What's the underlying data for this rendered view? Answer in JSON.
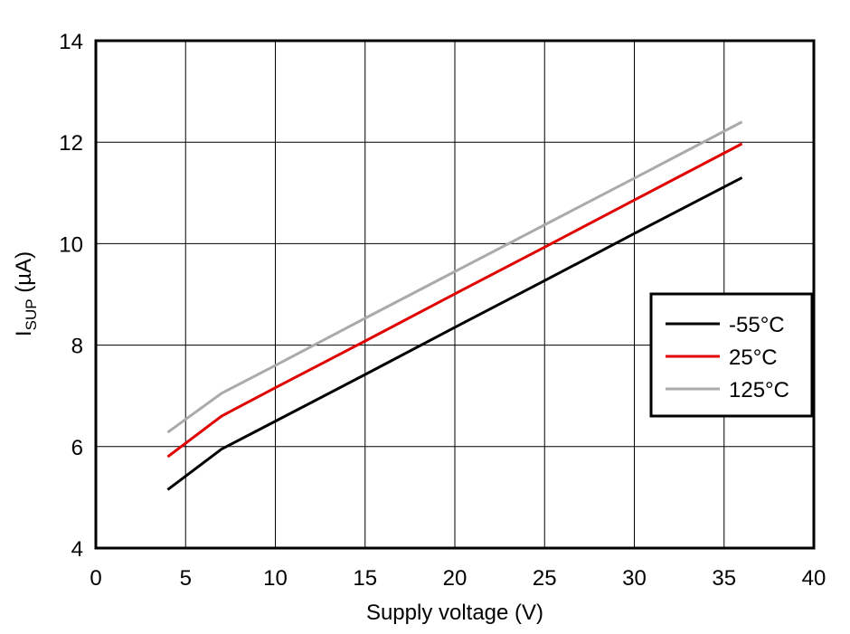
{
  "chart_data": {
    "type": "line",
    "x_label": "Supply voltage (V)",
    "y_label": {
      "main": "I",
      "sub": "SUP",
      "rest": " (µA)"
    },
    "x": [
      4,
      7,
      10,
      15,
      20,
      25,
      30,
      36
    ],
    "series": [
      {
        "name": "-55°C",
        "color": "#000000",
        "values": [
          5.15,
          5.95,
          6.5,
          7.42,
          8.35,
          9.27,
          10.2,
          11.3
        ]
      },
      {
        "name": "25°C",
        "color": "#e00000",
        "values": [
          5.8,
          6.6,
          7.16,
          8.08,
          9.01,
          9.93,
          10.86,
          11.97
        ]
      },
      {
        "name": "125°C",
        "color": "#aaaaaa",
        "values": [
          6.28,
          7.05,
          7.6,
          8.53,
          9.45,
          10.37,
          11.29,
          12.4
        ]
      }
    ],
    "xlim": [
      0,
      40
    ],
    "xticks": [
      0,
      5,
      10,
      15,
      20,
      25,
      30,
      35,
      40
    ],
    "ylim": [
      4,
      14
    ],
    "yticks": [
      4,
      6,
      8,
      10,
      12,
      14
    ],
    "grid": true,
    "legend": "right"
  }
}
